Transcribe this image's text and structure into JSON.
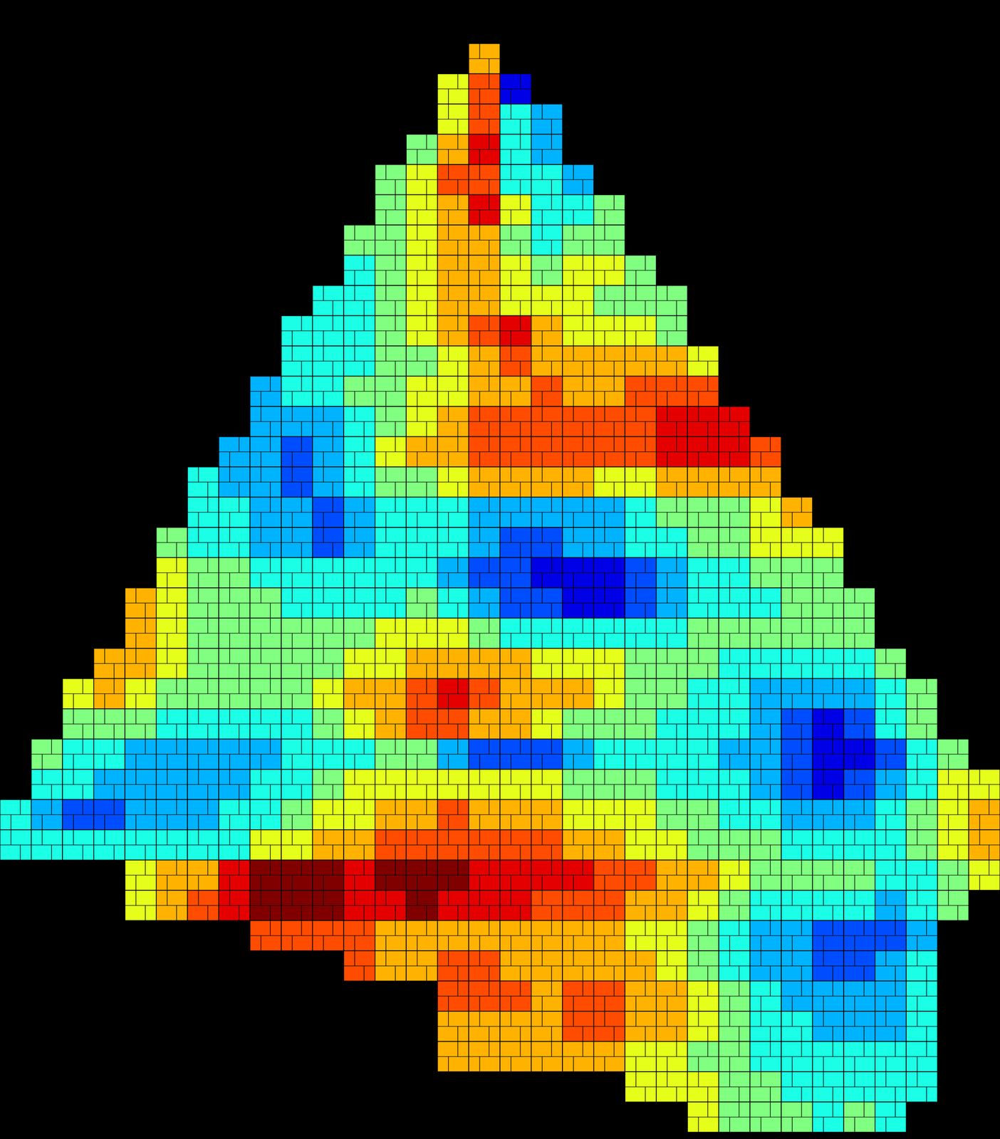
{
  "chart_data": {
    "type": "heatmap",
    "tick_labels": false,
    "color_range": [
      0,
      10
    ],
    "cells": [
      [
        null,
        null,
        null,
        null,
        null,
        null,
        null,
        null,
        null,
        null,
        null,
        null,
        null,
        null,
        null,
        7,
        null,
        null,
        null,
        null,
        null,
        null,
        null,
        null,
        null,
        null,
        null,
        null,
        null,
        null,
        null,
        null
      ],
      [
        null,
        null,
        null,
        null,
        null,
        null,
        null,
        null,
        null,
        null,
        null,
        null,
        null,
        null,
        6,
        8,
        1,
        null,
        null,
        null,
        null,
        null,
        null,
        null,
        null,
        null,
        null,
        null,
        null,
        null,
        null,
        null
      ],
      [
        null,
        null,
        null,
        null,
        null,
        null,
        null,
        null,
        null,
        null,
        null,
        null,
        null,
        null,
        6,
        8,
        4,
        3,
        null,
        null,
        null,
        null,
        null,
        null,
        null,
        null,
        null,
        null,
        null,
        null,
        null,
        null
      ],
      [
        null,
        null,
        null,
        null,
        null,
        null,
        null,
        null,
        null,
        null,
        null,
        null,
        null,
        5,
        7,
        9,
        4,
        3,
        null,
        null,
        null,
        null,
        null,
        null,
        null,
        null,
        null,
        null,
        null,
        null,
        null,
        null
      ],
      [
        null,
        null,
        null,
        null,
        null,
        null,
        null,
        null,
        null,
        null,
        null,
        null,
        5,
        6,
        8,
        8,
        4,
        4,
        3,
        null,
        null,
        null,
        null,
        null,
        null,
        null,
        null,
        null,
        null,
        null,
        null,
        null
      ],
      [
        null,
        null,
        null,
        null,
        null,
        null,
        null,
        null,
        null,
        null,
        null,
        null,
        5,
        6,
        7,
        9,
        6,
        4,
        4,
        5,
        null,
        null,
        null,
        null,
        null,
        null,
        null,
        null,
        null,
        null,
        null,
        null
      ],
      [
        null,
        null,
        null,
        null,
        null,
        null,
        null,
        null,
        null,
        null,
        null,
        5,
        5,
        6,
        7,
        7,
        5,
        4,
        5,
        5,
        null,
        null,
        null,
        null,
        null,
        null,
        null,
        null,
        null,
        null,
        null,
        null
      ],
      [
        null,
        null,
        null,
        null,
        null,
        null,
        null,
        null,
        null,
        null,
        null,
        4,
        5,
        6,
        7,
        7,
        6,
        5,
        6,
        6,
        5,
        null,
        null,
        null,
        null,
        null,
        null,
        null,
        null,
        null,
        null,
        null
      ],
      [
        null,
        null,
        null,
        null,
        null,
        null,
        null,
        null,
        null,
        null,
        4,
        4,
        5,
        6,
        7,
        7,
        6,
        6,
        6,
        5,
        5,
        5,
        null,
        null,
        null,
        null,
        null,
        null,
        null,
        null,
        null,
        null
      ],
      [
        null,
        null,
        null,
        null,
        null,
        null,
        null,
        null,
        null,
        4,
        4,
        4,
        5,
        6,
        7,
        8,
        9,
        7,
        6,
        6,
        6,
        5,
        null,
        null,
        null,
        null,
        null,
        null,
        null,
        null,
        null,
        null
      ],
      [
        null,
        null,
        null,
        null,
        null,
        null,
        null,
        null,
        null,
        4,
        4,
        4,
        5,
        5,
        6,
        7,
        8,
        7,
        7,
        7,
        7,
        7,
        6,
        null,
        null,
        null,
        null,
        null,
        null,
        null,
        null,
        null
      ],
      [
        null,
        null,
        null,
        null,
        null,
        null,
        null,
        null,
        3,
        4,
        4,
        5,
        5,
        6,
        6,
        7,
        7,
        8,
        7,
        7,
        8,
        8,
        8,
        null,
        null,
        null,
        null,
        null,
        null,
        null,
        null,
        null
      ],
      [
        null,
        null,
        null,
        null,
        null,
        null,
        null,
        null,
        3,
        3,
        3,
        4,
        5,
        6,
        7,
        8,
        8,
        8,
        8,
        8,
        8,
        9,
        9,
        9,
        null,
        null,
        null,
        null,
        null,
        null,
        null,
        null
      ],
      [
        null,
        null,
        null,
        null,
        null,
        null,
        null,
        3,
        3,
        2,
        3,
        4,
        6,
        7,
        7,
        8,
        8,
        8,
        8,
        8,
        8,
        9,
        9,
        9,
        8,
        null,
        null,
        null,
        null,
        null,
        null,
        null
      ],
      [
        null,
        null,
        null,
        null,
        null,
        null,
        4,
        3,
        3,
        2,
        3,
        4,
        5,
        5,
        6,
        7,
        7,
        7,
        7,
        6,
        6,
        7,
        7,
        7,
        7,
        null,
        null,
        null,
        null,
        null,
        null,
        null
      ],
      [
        null,
        null,
        null,
        null,
        null,
        null,
        4,
        4,
        3,
        3,
        2,
        3,
        4,
        4,
        4,
        3,
        3,
        3,
        3,
        3,
        4,
        5,
        5,
        5,
        6,
        7,
        null,
        null,
        null,
        null,
        null,
        null
      ],
      [
        null,
        null,
        null,
        null,
        null,
        5,
        4,
        4,
        3,
        3,
        2,
        3,
        4,
        4,
        4,
        3,
        2,
        2,
        3,
        3,
        4,
        4,
        5,
        5,
        6,
        6,
        6,
        null,
        null,
        null,
        null,
        null
      ],
      [
        null,
        null,
        null,
        null,
        null,
        6,
        5,
        5,
        4,
        4,
        4,
        4,
        4,
        4,
        3,
        2,
        2,
        1,
        1,
        1,
        2,
        3,
        4,
        4,
        5,
        5,
        5,
        null,
        null,
        null,
        null,
        null
      ],
      [
        null,
        null,
        null,
        null,
        7,
        6,
        5,
        5,
        5,
        4,
        4,
        4,
        4,
        5,
        4,
        3,
        2,
        2,
        1,
        1,
        2,
        3,
        4,
        4,
        4,
        5,
        5,
        5,
        null,
        null,
        null,
        null
      ],
      [
        null,
        null,
        null,
        null,
        7,
        6,
        5,
        5,
        5,
        5,
        5,
        5,
        6,
        6,
        6,
        5,
        4,
        4,
        4,
        4,
        4,
        4,
        5,
        5,
        5,
        5,
        5,
        5,
        null,
        null,
        null,
        null
      ],
      [
        null,
        null,
        null,
        7,
        7,
        6,
        5,
        5,
        5,
        5,
        5,
        6,
        6,
        7,
        7,
        7,
        7,
        6,
        6,
        6,
        5,
        5,
        5,
        4,
        4,
        4,
        4,
        4,
        5,
        null,
        null,
        null
      ],
      [
        null,
        null,
        6,
        7,
        6,
        5,
        5,
        5,
        5,
        5,
        6,
        7,
        7,
        8,
        9,
        8,
        7,
        7,
        7,
        6,
        5,
        5,
        4,
        4,
        3,
        3,
        3,
        3,
        4,
        5,
        null,
        null
      ],
      [
        null,
        null,
        5,
        5,
        5,
        4,
        4,
        4,
        4,
        4,
        5,
        6,
        7,
        8,
        8,
        7,
        7,
        6,
        5,
        5,
        5,
        4,
        4,
        4,
        3,
        2,
        1,
        2,
        4,
        5,
        null,
        null
      ],
      [
        null,
        5,
        4,
        4,
        3,
        3,
        3,
        3,
        3,
        4,
        4,
        4,
        5,
        5,
        3,
        2,
        2,
        2,
        3,
        4,
        4,
        4,
        4,
        3,
        3,
        2,
        1,
        1,
        2,
        4,
        5,
        null
      ],
      [
        null,
        4,
        4,
        3,
        3,
        3,
        3,
        3,
        4,
        4,
        5,
        6,
        6,
        6,
        6,
        6,
        6,
        6,
        5,
        5,
        5,
        4,
        4,
        4,
        3,
        2,
        1,
        2,
        3,
        4,
        6,
        6
      ],
      [
        4,
        3,
        2,
        2,
        3,
        3,
        3,
        4,
        4,
        5,
        6,
        6,
        7,
        7,
        8,
        7,
        7,
        7,
        6,
        6,
        6,
        5,
        5,
        4,
        4,
        3,
        3,
        3,
        4,
        5,
        6,
        7
      ],
      [
        4,
        4,
        4,
        4,
        4,
        4,
        4,
        4,
        6,
        6,
        7,
        7,
        8,
        8,
        8,
        8,
        8,
        8,
        7,
        7,
        6,
        6,
        5,
        5,
        5,
        4,
        4,
        4,
        4,
        5,
        6,
        7
      ],
      [
        null,
        null,
        null,
        null,
        6,
        7,
        7,
        9,
        10,
        10,
        10,
        9,
        10,
        10,
        10,
        9,
        9,
        9,
        9,
        8,
        8,
        7,
        7,
        6,
        5,
        5,
        5,
        5,
        4,
        4,
        5,
        6
      ],
      [
        null,
        null,
        null,
        null,
        6,
        7,
        8,
        9,
        10,
        10,
        10,
        9,
        9,
        10,
        9,
        9,
        9,
        8,
        8,
        8,
        7,
        7,
        6,
        5,
        4,
        4,
        4,
        4,
        3,
        4,
        5,
        null
      ],
      [
        null,
        null,
        null,
        null,
        null,
        null,
        null,
        null,
        8,
        8,
        8,
        8,
        7,
        7,
        7,
        7,
        7,
        7,
        7,
        7,
        6,
        6,
        5,
        4,
        3,
        3,
        2,
        2,
        2,
        3,
        null,
        null
      ],
      [
        null,
        null,
        null,
        null,
        null,
        null,
        null,
        null,
        null,
        null,
        null,
        8,
        7,
        7,
        8,
        8,
        7,
        7,
        7,
        7,
        7,
        6,
        5,
        4,
        3,
        3,
        2,
        2,
        3,
        4,
        null,
        null
      ],
      [
        null,
        null,
        null,
        null,
        null,
        null,
        null,
        null,
        null,
        null,
        null,
        null,
        null,
        null,
        8,
        8,
        8,
        7,
        8,
        8,
        7,
        7,
        6,
        5,
        4,
        3,
        3,
        3,
        3,
        4,
        null,
        null
      ],
      [
        null,
        null,
        null,
        null,
        null,
        null,
        null,
        null,
        null,
        null,
        null,
        null,
        null,
        null,
        7,
        7,
        7,
        7,
        8,
        8,
        7,
        7,
        6,
        5,
        4,
        4,
        3,
        3,
        3,
        4,
        null,
        null
      ],
      [
        null,
        null,
        null,
        null,
        null,
        null,
        null,
        null,
        null,
        null,
        null,
        null,
        null,
        null,
        7,
        7,
        7,
        7,
        7,
        7,
        6,
        6,
        5,
        5,
        4,
        4,
        4,
        4,
        4,
        4,
        null,
        null
      ],
      [
        null,
        null,
        null,
        null,
        null,
        null,
        null,
        null,
        null,
        null,
        null,
        null,
        null,
        null,
        null,
        null,
        null,
        null,
        null,
        null,
        6,
        6,
        6,
        5,
        5,
        4,
        4,
        4,
        4,
        4,
        null,
        null
      ],
      [
        null,
        null,
        null,
        null,
        null,
        null,
        null,
        null,
        null,
        null,
        null,
        null,
        null,
        null,
        null,
        null,
        null,
        null,
        null,
        null,
        null,
        null,
        6,
        5,
        5,
        5,
        4,
        5,
        4,
        null,
        null,
        null
      ]
    ]
  }
}
